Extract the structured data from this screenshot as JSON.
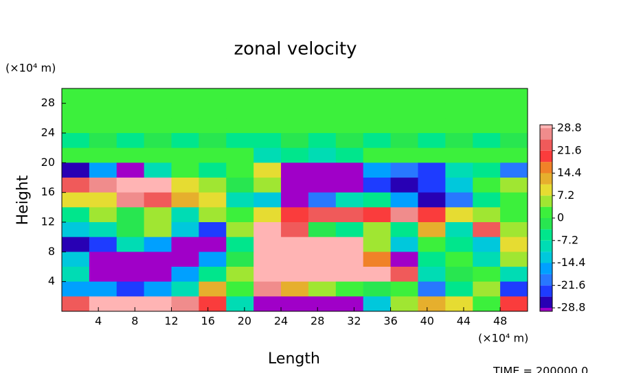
{
  "chart_data": {
    "type": "contour",
    "title": "zonal velocity",
    "x_label": "Length",
    "y_label": "Height",
    "x_unit": "(×10⁴ m)",
    "y_unit": "(×10⁴ m)",
    "annotation": "TIME = 200000.0",
    "xlim": [
      0,
      51
    ],
    "ylim": [
      0,
      30
    ],
    "xticks": [
      4,
      8,
      12,
      16,
      20,
      24,
      28,
      32,
      36,
      40,
      44,
      48
    ],
    "yticks": [
      4,
      8,
      12,
      16,
      20,
      24,
      28
    ],
    "x": [
      1.5,
      4.5,
      7.5,
      10.5,
      13.5,
      16.5,
      19.5,
      22.5,
      25.5,
      28.5,
      31.5,
      34.5,
      37.5,
      40.5,
      43.5,
      46.5,
      49.5
    ],
    "y": [
      29,
      27,
      25,
      23,
      21,
      19,
      17,
      15,
      13,
      11,
      9,
      7,
      5,
      3,
      1
    ],
    "z": [
      [
        1,
        1,
        1,
        1,
        1,
        1,
        1,
        1,
        1,
        1,
        1,
        1,
        1,
        1,
        1,
        1,
        1
      ],
      [
        1,
        1,
        1,
        1,
        1,
        1,
        1,
        1,
        1,
        1,
        1,
        1,
        1,
        1,
        1,
        1,
        1
      ],
      [
        2,
        2,
        1,
        1,
        2,
        1,
        1,
        2,
        1,
        1,
        2,
        1,
        1,
        2,
        1,
        1,
        2
      ],
      [
        -5,
        -3,
        -4,
        -3,
        -4,
        -3,
        -4,
        -4,
        -3,
        -4,
        -3,
        -4,
        -3,
        -4,
        -3,
        -4,
        -3
      ],
      [
        2,
        3,
        2,
        2,
        3,
        2,
        3,
        -8,
        -6,
        -8,
        -5,
        2,
        3,
        2,
        2,
        3,
        2
      ],
      [
        -26,
        -18,
        -30,
        -10,
        2,
        -5,
        3,
        8,
        -30,
        -32,
        -32,
        -15,
        -20,
        -24,
        -10,
        -5,
        -20
      ],
      [
        24,
        26,
        32,
        32,
        8,
        4,
        -2,
        5,
        -30,
        -32,
        -31,
        -22,
        -28,
        -24,
        -12,
        2,
        6
      ],
      [
        10,
        8,
        26,
        22,
        12,
        8,
        -8,
        -14,
        -33,
        -20,
        -10,
        -6,
        -18,
        -26,
        -20,
        -6,
        0
      ],
      [
        -4,
        4,
        -2,
        6,
        -8,
        4,
        2,
        10,
        20,
        24,
        22,
        18,
        26,
        20,
        8,
        6,
        2
      ],
      [
        -12,
        -10,
        -2,
        4,
        -14,
        -22,
        6,
        30,
        24,
        -2,
        -4,
        4,
        -6,
        14,
        -10,
        24,
        4
      ],
      [
        -28,
        -24,
        -8,
        -16,
        -32,
        -30,
        -6,
        33,
        33,
        33,
        30,
        6,
        -14,
        2,
        -6,
        -12,
        8
      ],
      [
        -14,
        -32,
        -33,
        -33,
        -30,
        -16,
        -2,
        33,
        33,
        33,
        33,
        16,
        -30,
        -4,
        2,
        -8,
        4
      ],
      [
        -10,
        -33,
        -33,
        -33,
        -18,
        -4,
        4,
        30,
        33,
        33,
        33,
        33,
        24,
        -10,
        -2,
        2,
        -10
      ],
      [
        -18,
        -16,
        -24,
        -18,
        -10,
        12,
        2,
        28,
        12,
        6,
        2,
        -2,
        2,
        -20,
        -6,
        6,
        -24
      ],
      [
        22,
        33,
        33,
        33,
        26,
        20,
        -10,
        -33,
        -33,
        -33,
        -33,
        -12,
        6,
        12,
        8,
        0,
        20
      ]
    ],
    "colorbar": {
      "ticks": [
        28.8,
        21.6,
        14.4,
        7.2,
        0,
        -7.2,
        -14.4,
        -21.6,
        -28.8
      ],
      "levels": [
        -28.8,
        -25.2,
        -21.6,
        -18,
        -14.4,
        -10.8,
        -7.2,
        -3.6,
        0,
        3.6,
        7.2,
        10.8,
        14.4,
        18,
        21.6,
        25.2,
        28.8
      ],
      "colors": [
        "#2800b4",
        "#1e3cff",
        "#2878ff",
        "#00a0ff",
        "#00c8dc",
        "#00dcb4",
        "#00e68c",
        "#28e650",
        "#3cf03c",
        "#a0e632",
        "#e6dc32",
        "#e6af2d",
        "#f08228",
        "#fa3c3c",
        "#f05a5a",
        "#f08c8c"
      ],
      "under_color": "#a000c8",
      "over_color": "#ffb4b4"
    }
  }
}
